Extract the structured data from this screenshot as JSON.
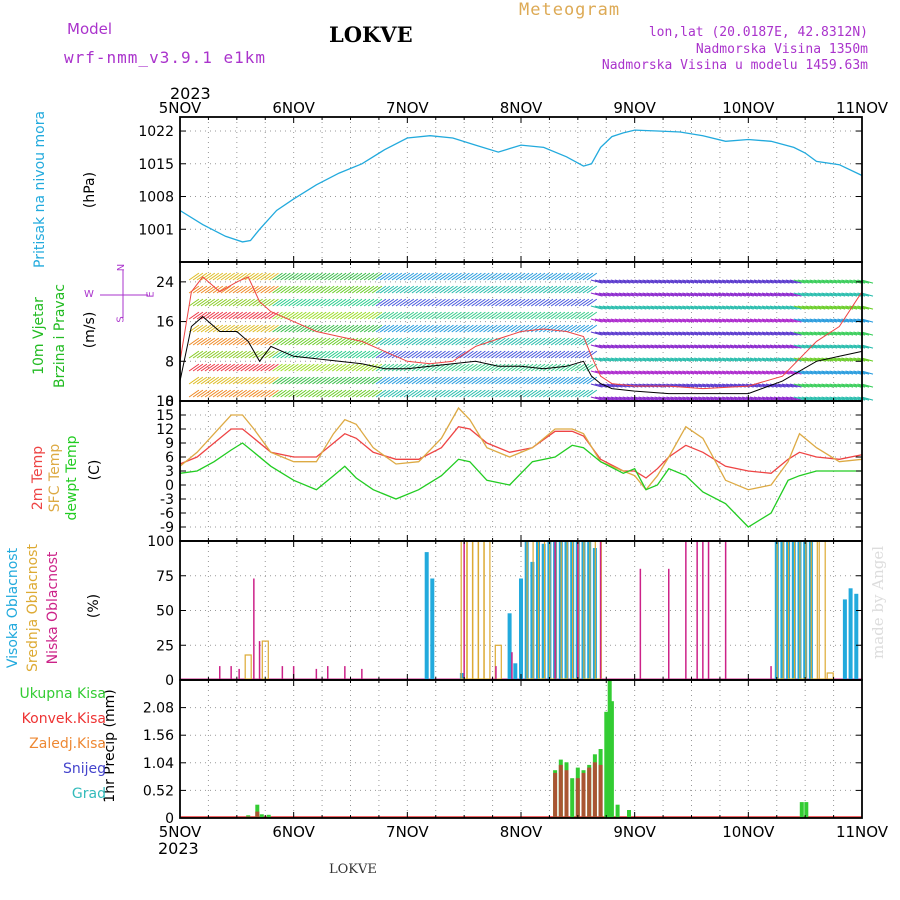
{
  "header": {
    "model_label": "Model",
    "model_name": "wrf-nmm_v3.9.1 e1km",
    "station": "LOKVE",
    "meteogram_title": "Meteogram",
    "lonlat": "lon,lat (20.0187E, 42.8312N)",
    "elevation": "Nadmorska Visina 1350m",
    "model_elevation": "Nadmorska Visina u modelu 1459.63m",
    "footer_station": "LOKVE",
    "watermark": "made by Angel",
    "year_top": "2023",
    "year_bottom": "2023"
  },
  "colors": {
    "pressure": "#22aadd",
    "wind_label": "#22bb22",
    "temp2m": "#ee4444",
    "sfc_temp": "#ddaa44",
    "dewpoint": "#22cc22",
    "high_cloud": "#22aadd",
    "mid_cloud": "#ddaa33",
    "low_cloud": "#cc2288",
    "total_precip": "#33cc33",
    "conv_precip": "#ee3333",
    "frz_precip": "#ee8833",
    "snow": "#4444cc",
    "hail": "#33bbbb",
    "header_purple": "#aa33cc",
    "header_orange": "#ddaa55"
  },
  "time_axis": {
    "labels": [
      "5NOV",
      "6NOV",
      "7NOV",
      "8NOV",
      "9NOV",
      "10NOV",
      "11NOV"
    ]
  },
  "panels": {
    "pressure": {
      "label": "Pritisak na nivou mora",
      "unit": "(hPa)",
      "ticks": [
        "1022",
        "1015",
        "1008",
        "1001"
      ]
    },
    "wind": {
      "label1": "10m Vjetar",
      "label2": "Brzina i Pravac",
      "unit": "(m/s)",
      "ticks": [
        "24",
        "16",
        "8",
        "0"
      ],
      "compass": {
        "w": "W",
        "n": "N",
        "e": "E",
        "s": "S"
      }
    },
    "temp": {
      "label1": "2m Temp",
      "label2": "SFC Temp",
      "label3": "dewpt Temp",
      "unit": "(C)",
      "ticks": [
        "18",
        "15",
        "12",
        "9",
        "6",
        "3",
        "0",
        "-3",
        "-6",
        "-9"
      ]
    },
    "cloud": {
      "label1": "Visoka Oblacnost",
      "label2": "Srednja Oblacnost",
      "label3": "Niska Oblacnost",
      "unit": "(%)",
      "ticks": [
        "100",
        "75",
        "50",
        "25",
        "0"
      ]
    },
    "precip": {
      "legend": [
        "Ukupna Kisa",
        "Konvek.Kisa",
        "Zaledj.Kisa",
        "Snijeg",
        "Grad"
      ],
      "unit": "1hr Precip (mm)",
      "ticks": [
        "2.08",
        "1.56",
        "1.04",
        "0.52",
        "0"
      ]
    }
  },
  "chart_data": [
    {
      "type": "line",
      "title": "",
      "ylabel": "Pritisak na nivou mora (hPa)",
      "ylim": [
        994,
        1025
      ],
      "x_days": [
        0,
        0.2,
        0.4,
        0.55,
        0.62,
        0.7,
        0.85,
        1.0,
        1.2,
        1.4,
        1.6,
        1.8,
        2.0,
        2.2,
        2.4,
        2.6,
        2.8,
        3.0,
        3.2,
        3.4,
        3.55,
        3.62,
        3.7,
        3.8,
        3.9,
        4.0,
        4.2,
        4.4,
        4.6,
        4.8,
        5.0,
        5.2,
        5.4,
        5.5,
        5.6,
        5.8,
        6.0
      ],
      "series": [
        {
          "name": "",
          "values": [
            1005,
            1002,
            999.5,
            998.3,
            998.6,
            1001,
            1005,
            1007.5,
            1010.5,
            1013,
            1015,
            1018,
            1020.5,
            1021,
            1020.5,
            1019,
            1017.5,
            1019,
            1018.5,
            1016.5,
            1014.5,
            1015,
            1018.5,
            1020.8,
            1021.6,
            1022.2,
            1022,
            1021.8,
            1021,
            1019.8,
            1020.2,
            1019.8,
            1018.5,
            1017.3,
            1015.5,
            1014.8,
            1012.5
          ]
        }
      ]
    },
    {
      "type": "line",
      "title": "",
      "ylabel": "10m Vjetar Brzina i Pravac (m/s)",
      "ylim": [
        0,
        28
      ],
      "x_days": [
        0,
        0.1,
        0.2,
        0.35,
        0.5,
        0.6,
        0.7,
        0.8,
        0.9,
        1.0,
        1.2,
        1.4,
        1.6,
        1.8,
        2.0,
        2.2,
        2.4,
        2.6,
        2.8,
        3.0,
        3.2,
        3.4,
        3.55,
        3.62,
        3.7,
        3.8,
        4.0,
        4.3,
        4.6,
        5.0,
        5.3,
        5.6,
        5.8,
        6.0
      ],
      "series": [
        {
          "name": "",
          "values": [
            4,
            15,
            17,
            14,
            14,
            12,
            8,
            11,
            10,
            9,
            8.5,
            8,
            7.5,
            6.5,
            6.5,
            7,
            7.5,
            8,
            7,
            7,
            6.5,
            7,
            8,
            5,
            3.5,
            2.5,
            2,
            1.5,
            1.5,
            1.5,
            4,
            8,
            9,
            10
          ]
        },
        {
          "name": "",
          "values": [
            8,
            22,
            25,
            22,
            24,
            25,
            20,
            18,
            17,
            16,
            14,
            13,
            12,
            10,
            8,
            7.5,
            8,
            11,
            12.5,
            14,
            14.5,
            14,
            13,
            9,
            5,
            3.5,
            3,
            3,
            2.5,
            3,
            5,
            12,
            15,
            22
          ]
        }
      ]
    },
    {
      "type": "line",
      "title": "",
      "ylabel": "(C)",
      "ylim": [
        -12,
        18
      ],
      "x_days": [
        0,
        0.15,
        0.3,
        0.45,
        0.55,
        0.65,
        0.8,
        1.0,
        1.2,
        1.35,
        1.45,
        1.55,
        1.7,
        1.9,
        2.1,
        2.3,
        2.45,
        2.55,
        2.7,
        2.9,
        3.1,
        3.3,
        3.45,
        3.55,
        3.7,
        3.9,
        4.0,
        4.1,
        4.2,
        4.3,
        4.45,
        4.6,
        4.8,
        5.0,
        5.2,
        5.35,
        5.45,
        5.6,
        5.8,
        6.0
      ],
      "series": [
        {
          "name": "2m Temp",
          "values": [
            4.5,
            6,
            9,
            12,
            12,
            10,
            7,
            6,
            6,
            9,
            11,
            10,
            7,
            5.5,
            5.5,
            8,
            12.5,
            12,
            9,
            7,
            8,
            11.5,
            11.5,
            10.5,
            5.5,
            3,
            3,
            1.5,
            3.5,
            6,
            8.5,
            7,
            4,
            3,
            2.5,
            5.5,
            7,
            6,
            5.5,
            6.5
          ]
        },
        {
          "name": "SFC Temp",
          "values": [
            4,
            7,
            11,
            15,
            15,
            12,
            7,
            5,
            5,
            11,
            14,
            13,
            8,
            4.5,
            5,
            10,
            16.5,
            14,
            8,
            6,
            8,
            12,
            12,
            11,
            5,
            3,
            2,
            -1,
            2,
            6,
            12.5,
            10,
            1,
            -1,
            0,
            5,
            11,
            8,
            5,
            5.5
          ]
        },
        {
          "name": "dewpt Temp",
          "values": [
            2.5,
            3,
            5,
            7.5,
            9,
            7,
            4,
            1,
            -1,
            2,
            4,
            1.5,
            -1,
            -3,
            -1,
            2,
            5.5,
            5,
            1,
            0,
            5,
            6,
            8.5,
            8,
            5,
            2.5,
            3.5,
            -1,
            0,
            3.5,
            2,
            -1.5,
            -4,
            -9,
            -6,
            1,
            2,
            3,
            3,
            3
          ]
        }
      ]
    },
    {
      "type": "bar",
      "title": "",
      "ylabel": "(%)",
      "ylim": [
        0,
        100
      ],
      "series": [
        {
          "name": "Visoka Oblacnost",
          "x_days": [
            2.17,
            2.22,
            2.48,
            2.9,
            2.95,
            3.0,
            3.05,
            3.1,
            3.15,
            3.2,
            3.25,
            3.3,
            3.35,
            3.4,
            3.45,
            3.5,
            3.55,
            3.6,
            3.65,
            5.25,
            5.3,
            5.35,
            5.4,
            5.45,
            5.5,
            5.55,
            5.85,
            5.9,
            5.95
          ],
          "values": [
            92,
            73,
            5,
            48,
            12,
            73,
            100,
            85,
            100,
            98,
            100,
            100,
            100,
            100,
            100,
            100,
            100,
            100,
            95,
            100,
            100,
            100,
            100,
            100,
            100,
            100,
            58,
            66,
            62
          ]
        },
        {
          "name": "Srednja Oblacnost",
          "x_days": [
            0.6,
            0.75,
            2.5,
            2.55,
            2.6,
            2.65,
            2.7,
            2.8,
            3.08,
            3.18,
            3.28,
            3.38,
            3.48,
            3.58,
            3.68,
            5.28,
            5.38,
            5.48,
            5.58,
            5.65,
            5.72
          ],
          "values": [
            18,
            28,
            100,
            100,
            100,
            100,
            100,
            25,
            100,
            100,
            100,
            100,
            100,
            100,
            100,
            100,
            100,
            100,
            100,
            100,
            5
          ]
        },
        {
          "name": "Niska Oblacnost",
          "x_days": [
            0.35,
            0.45,
            0.52,
            0.65,
            0.7,
            0.9,
            1.0,
            1.2,
            1.3,
            1.45,
            1.6,
            2.5,
            2.78,
            2.92,
            3.3,
            3.5,
            3.7,
            4.05,
            4.3,
            4.45,
            4.55,
            4.6,
            4.65,
            4.8,
            5.2
          ],
          "values": [
            10,
            10,
            8,
            73,
            28,
            10,
            10,
            8,
            10,
            10,
            8,
            100,
            10,
            20,
            100,
            100,
            100,
            80,
            80,
            100,
            100,
            100,
            100,
            100,
            10
          ]
        }
      ]
    },
    {
      "type": "bar",
      "title": "",
      "ylabel": "1hr Precip (mm)",
      "ylim": [
        0,
        2.6
      ],
      "series": [
        {
          "name": "Ukupna Kisa",
          "x_days": [
            0.6,
            0.68,
            0.72,
            0.78,
            3.3,
            3.35,
            3.4,
            3.45,
            3.5,
            3.55,
            3.6,
            3.65,
            3.7,
            3.75,
            3.78,
            3.8,
            3.85,
            3.95,
            5.47,
            5.51
          ],
          "values": [
            0.05,
            0.25,
            0.07,
            0.06,
            0.9,
            1.1,
            1.05,
            0.75,
            0.95,
            0.9,
            1.0,
            1.2,
            1.3,
            2.0,
            2.6,
            2.2,
            0.25,
            0.15,
            0.3,
            0.3
          ]
        },
        {
          "name": "Konvek.Kisa",
          "x_days": [
            0.6,
            0.68,
            3.3,
            3.35,
            3.4,
            3.5,
            3.55,
            3.6,
            3.65,
            3.7
          ],
          "values": [
            0.03,
            0.12,
            0.85,
            1.0,
            0.9,
            0.75,
            0.85,
            0.95,
            1.05,
            1.0
          ]
        }
      ]
    }
  ]
}
